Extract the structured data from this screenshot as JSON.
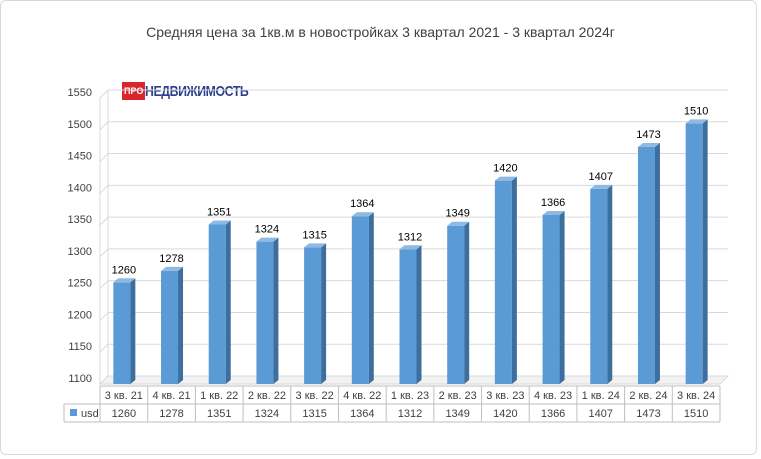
{
  "logo": {
    "badge": "ПРО",
    "name": "НЕДВИЖИМОСТЬ"
  },
  "colors": {
    "bar_front": "#5b9bd5",
    "bar_side": "#3d6f9e",
    "bar_top": "#8fb8e2"
  },
  "chart_data": {
    "type": "bar",
    "title": "Средняя  цена за 1кв.м в новостройках  3 квартал 2021 - 3 квартал  2024г",
    "categories": [
      "3 кв. 21",
      "4 кв. 21",
      "1 кв. 22",
      "2 кв. 22",
      "3 кв. 22",
      "4 кв. 22",
      "1 кв. 23",
      "2 кв. 23",
      "3 кв. 23",
      "4 кв. 23",
      "1 кв. 24",
      "2 кв. 24",
      "3 кв. 24"
    ],
    "series": [
      {
        "name": "usd",
        "values": [
          1260,
          1278,
          1351,
          1324,
          1315,
          1364,
          1312,
          1349,
          1420,
          1366,
          1407,
          1473,
          1510
        ]
      }
    ],
    "yticks": [
      1100,
      1150,
      1200,
      1250,
      1300,
      1350,
      1400,
      1450,
      1500,
      1550
    ],
    "ylim": [
      1100,
      1550
    ],
    "grid": true,
    "legend": "data-table-left",
    "data_table": true
  }
}
